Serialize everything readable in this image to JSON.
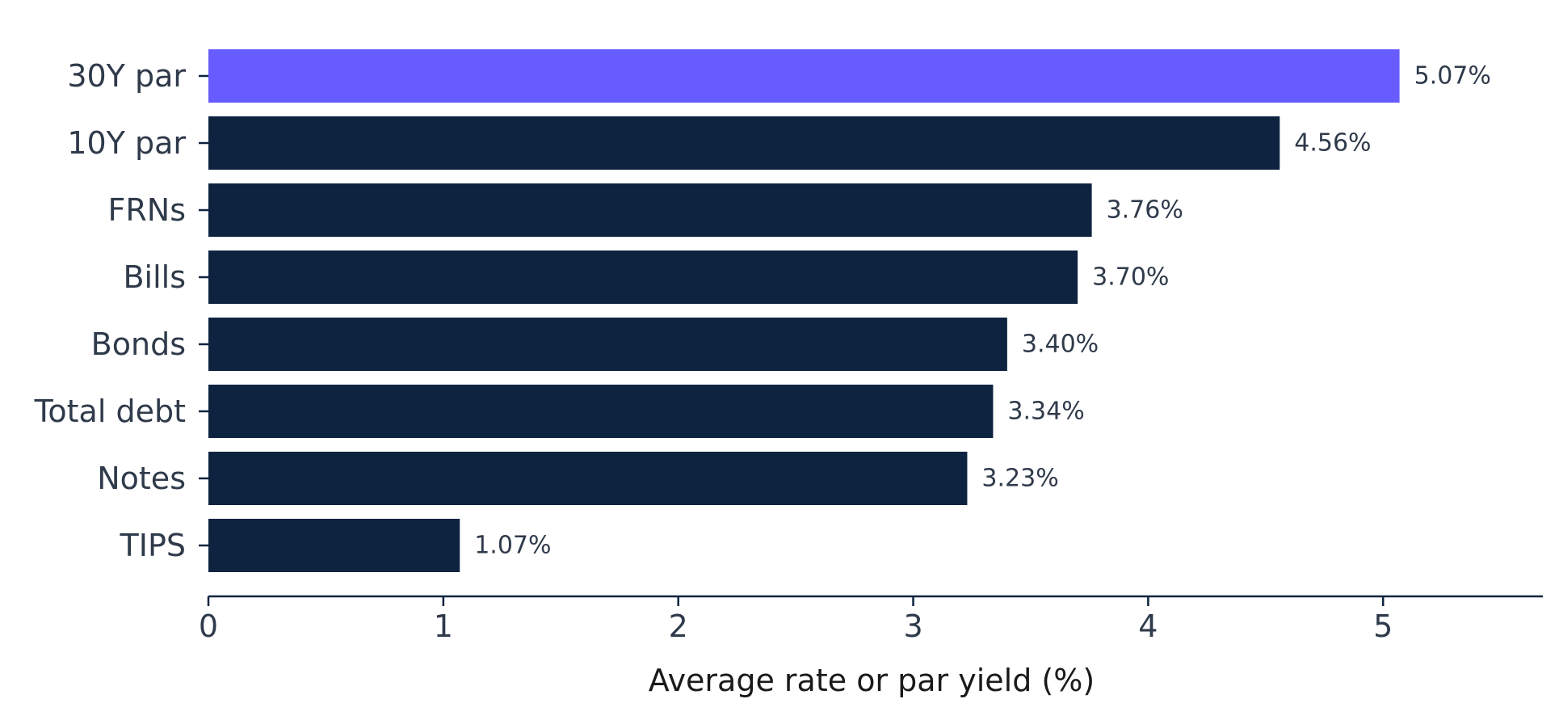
{
  "chart_data": {
    "type": "bar",
    "orientation": "horizontal",
    "categories": [
      "30Y par",
      "10Y par",
      "FRNs",
      "Bills",
      "Bonds",
      "Total debt",
      "Notes",
      "TIPS"
    ],
    "values": [
      5.07,
      4.56,
      3.76,
      3.7,
      3.4,
      3.34,
      3.23,
      1.07
    ],
    "value_labels": [
      "5.07%",
      "4.56%",
      "3.76%",
      "3.70%",
      "3.40%",
      "3.34%",
      "3.23%",
      "1.07%"
    ],
    "title": "",
    "xlabel": "Average rate or par yield (%)",
    "ylabel": "",
    "xlim": [
      0,
      5.68
    ],
    "xticks": [
      0,
      1,
      2,
      3,
      4,
      5
    ],
    "xtick_labels": [
      "0",
      "1",
      "2",
      "3",
      "4",
      "5"
    ],
    "grid": false,
    "legend": "none",
    "colors": {
      "highlight": "#665cff",
      "default": "#0d2340",
      "axis": "#0d2340",
      "text": "#2f3a4a"
    },
    "highlight_index": 0
  }
}
